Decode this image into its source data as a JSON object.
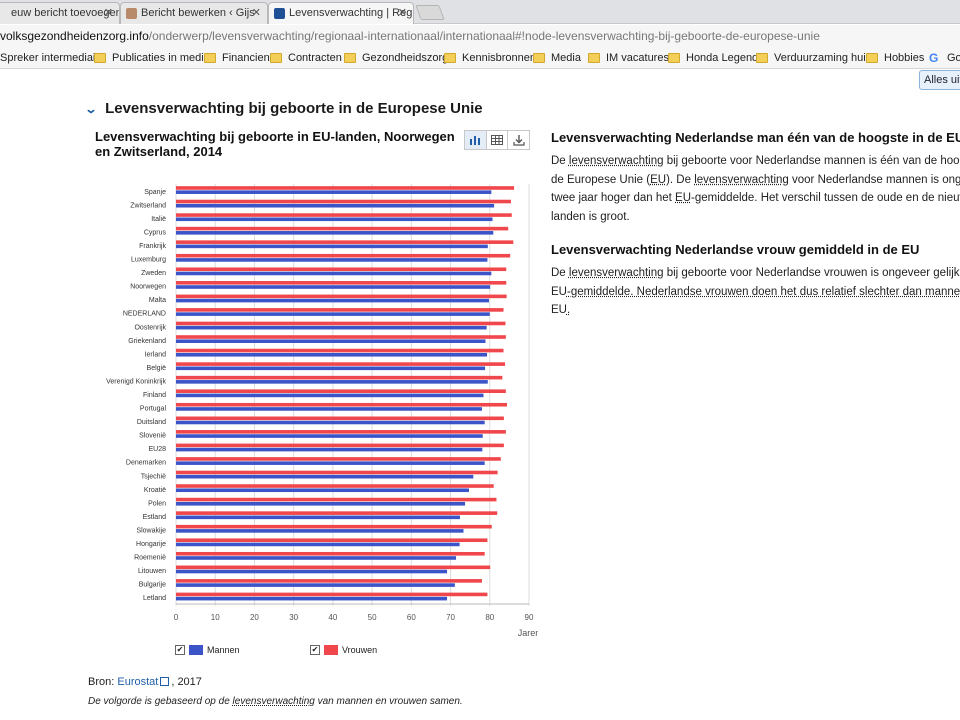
{
  "browser": {
    "tabs": [
      {
        "label": "euw bericht toevoegen"
      },
      {
        "label": "Bericht bewerken ‹ Gijs"
      },
      {
        "label": "Levensverwachting | Reg"
      }
    ],
    "address": {
      "host": "volksgezondheidenzorg.info",
      "path": "/onderwerp/levensverwachting/regionaal-internationaal/internationaal#!node-levensverwachting-bij-geboorte-de-europese-unie"
    },
    "bookmarks": [
      "Spreker intermediairs",
      "Publicaties in media",
      "Financien",
      "Contracten",
      "Gezondheidszorg",
      "Kennisbronnen",
      "Media",
      "IM vacatures",
      "Honda Legend",
      "Verduurzaming huis",
      "Hobbies",
      "Goo"
    ],
    "alles_uit": "Alles uit"
  },
  "page": {
    "section_title": "Levensverwachting bij geboorte in de Europese Unie",
    "chart_title": "Levensverwachting bij geboorte in EU-landen, Noorwegen en Zwitserland, 2014",
    "source_label": "Bron:",
    "source_link": "Eurostat",
    "source_year": ", 2017",
    "note_pre": "De volgorde is gebaseerd op de ",
    "note_link": "levensverwachting",
    "note_post": " van mannen en vrouwen samen.",
    "right": {
      "h1": "Levensverwachting Nederlandse man één van de hoogste in de EU",
      "p1": [
        [
          "De ",
          "levensverwachting",
          " bij geboorte voor Nederlandse mannen is één van de hoog"
        ],
        [
          "de Europese Unie (",
          "EU",
          "). De ",
          "levensverwachting",
          " voor Nederlandse mannen is ongev"
        ],
        [
          "twee jaar hoger dan het ",
          "EU",
          "-gemiddelde. Het verschil tussen de oude en de nieuw"
        ],
        [
          "landen is groot."
        ]
      ],
      "h2": "Levensverwachting Nederlandse vrouw gemiddeld in de EU",
      "p2": [
        [
          "De ",
          "levensverwachting",
          " bij geboorte voor Nederlandse vrouwen is ongeveer gelijk a"
        ],
        [
          "EU",
          "-gemiddelde. Nederlandse vrouwen doen het dus relatief slechter dan manner"
        ],
        [
          "EU",
          "."
        ]
      ]
    }
  },
  "colors": {
    "men": "#3b55c8",
    "women": "#f0474c",
    "grid": "#dcdcdc",
    "link": "#1f5fa8"
  },
  "chart_data": {
    "type": "bar",
    "orientation": "horizontal",
    "title": "Levensverwachting bij geboorte in EU-landen, Noorwegen en Zwitserland, 2014",
    "xlabel": "Jaren",
    "xlim": [
      0,
      90
    ],
    "xticks": [
      0,
      10,
      20,
      30,
      40,
      50,
      60,
      70,
      80,
      90
    ],
    "grid": true,
    "legend": "bottom",
    "categories": [
      "Spanje",
      "Zwitserland",
      "Italië",
      "Cyprus",
      "Frankrijk",
      "Luxemburg",
      "Zweden",
      "Noorwegen",
      "Malta",
      "NEDERLAND",
      "Oostenrijk",
      "Griekenland",
      "Ierland",
      "België",
      "Verenigd Koninkrijk",
      "Finland",
      "Portugal",
      "Duitsland",
      "Slovenië",
      "EU28",
      "Denemarken",
      "Tsjechië",
      "Kroatië",
      "Polen",
      "Estland",
      "Slowakije",
      "Hongarije",
      "Roemenië",
      "Litouwen",
      "Bulgarije",
      "Letland"
    ],
    "series": [
      {
        "name": "Mannen",
        "values": [
          80.4,
          81.1,
          80.7,
          80.9,
          79.5,
          79.4,
          80.4,
          80.1,
          79.8,
          80.0,
          79.2,
          78.9,
          79.3,
          78.8,
          79.5,
          78.4,
          78.0,
          78.7,
          78.2,
          78.1,
          78.7,
          75.8,
          74.7,
          73.7,
          72.4,
          73.3,
          72.3,
          71.4,
          69.1,
          71.1,
          69.1
        ]
      },
      {
        "name": "Vrouwen",
        "values": [
          86.2,
          85.4,
          85.6,
          84.7,
          86.0,
          85.2,
          84.2,
          84.2,
          84.3,
          83.5,
          84.0,
          84.1,
          83.5,
          83.9,
          83.2,
          84.1,
          84.4,
          83.6,
          84.1,
          83.6,
          82.8,
          82.0,
          81.0,
          81.7,
          81.9,
          80.5,
          79.4,
          78.7,
          80.1,
          78.0,
          79.4
        ]
      }
    ]
  }
}
